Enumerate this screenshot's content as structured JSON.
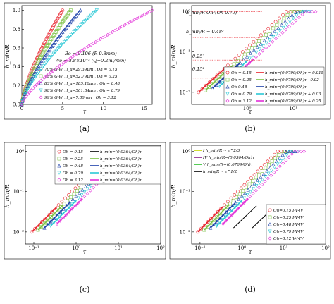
{
  "chart_data": [
    {
      "panel": "a",
      "type": "scatter",
      "caption": "(a)",
      "xlabel": "τ",
      "ylabel": "h_min/R",
      "xlim": [
        0,
        16
      ],
      "ylim": [
        0,
        1.05
      ],
      "x_ticks": [
        "0",
        "5",
        "10",
        "15"
      ],
      "y_ticks": [
        "0.0",
        "0.2",
        "0.4",
        "0.6",
        "0.8",
        "1.0"
      ],
      "y_tick_values": [
        0,
        0.2,
        0.4,
        0.6,
        0.8,
        1.0
      ],
      "params": [
        "Bo = 0.106 (R 0.8mm)",
        "We = 3.8×10⁻³ (Q=0.2ml/min)"
      ],
      "series": [
        {
          "name": "70% G-W , l_μ=29.39μm , Oh = 0.15",
          "marker": "circle",
          "color": "#e8202a",
          "tau_end": 5.0
        },
        {
          "name": "75% G-W , l_μ=52.79μm , Oh = 0.25",
          "marker": "square",
          "color": "#7ac143",
          "tau_end": 6.0
        },
        {
          "name": "83% G-W , l_μ=185.10μm , Oh = 0.48",
          "marker": "triangle-up",
          "color": "#1a3fa8",
          "tau_end": 7.2
        },
        {
          "name": "90% G-W , l_μ=501.84μm , Oh = 0.79",
          "marker": "triangle-down",
          "color": "#2bc8d6",
          "tau_end": 9.2
        },
        {
          "name": "99% G-W , l_μ=7.80mm , Oh = 3.12",
          "marker": "diamond",
          "color": "#e22fd8",
          "tau_end": 16.0
        }
      ]
    },
    {
      "panel": "b",
      "type": "scatter",
      "caption": "(b)",
      "xlabel": "τ",
      "ylabel": "h_min/R",
      "scale": "log-log",
      "xlim_exp": [
        -1.2,
        1.7
      ],
      "ylim_exp": [
        -2.3,
        0.15
      ],
      "x_ticks": [
        "10⁰",
        "10¹"
      ],
      "y_ticks": [
        "10⁻²",
        "10⁻¹",
        "10⁰"
      ],
      "annotations": [
        "h_min/R  Oh²(Oh  0.79)",
        "h_min/R = 0.48²",
        "0.25²",
        "0.15²"
      ],
      "series": [
        {
          "name": "Oh = 0.15",
          "marker": "circle",
          "color": "#e8202a"
        },
        {
          "name": "Oh = 0.25",
          "marker": "square",
          "color": "#7ac143"
        },
        {
          "name": "Oh  0.48",
          "marker": "triangle-up",
          "color": "#1a3fa8"
        },
        {
          "name": "Oh = 0.79",
          "marker": "triangle-down",
          "color": "#2bc8d6"
        },
        {
          "name": "Oh = 3.12",
          "marker": "diamond",
          "color": "#e22fd8"
        }
      ],
      "fits": [
        {
          "label": "h_min=(0.0709/Oh)τ = 0.015",
          "color": "#e8202a"
        },
        {
          "label": "h_min=(0.0709/Oh)τ - 0.02",
          "color": "#7ac143"
        },
        {
          "label": "h_min=(0.0709/Oh)τ",
          "color": "#1a3fa8"
        },
        {
          "label": "h_min=(0.0709/Oh)τ + 0.03",
          "color": "#2bc8d6"
        },
        {
          "label": "h_min=(0.0709/Oh)τ + 0.25",
          "color": "#e22fd8"
        }
      ]
    },
    {
      "panel": "c",
      "type": "scatter",
      "caption": "(c)",
      "xlabel": "τ",
      "ylabel": "h_min/R",
      "scale": "log-log",
      "xlim_exp": [
        -1.2,
        2.0
      ],
      "ylim_exp": [
        -2.3,
        0.15
      ],
      "x_ticks": [
        "10⁻¹",
        "10⁰",
        "10¹",
        "10²"
      ],
      "y_ticks": [
        "10⁻²",
        "10⁻¹",
        "10⁰"
      ],
      "series": [
        {
          "name": "Oh = 0.15",
          "marker": "circle",
          "color": "#e8202a"
        },
        {
          "name": "Oh = 0.25",
          "marker": "square",
          "color": "#7ac143"
        },
        {
          "name": "Oh = 0.48",
          "marker": "triangle-up",
          "color": "#1a3fa8"
        },
        {
          "name": "Oh = 0.79",
          "marker": "triangle-down",
          "color": "#2bc8d6"
        },
        {
          "name": "Oh = 3.12",
          "marker": "diamond",
          "color": "#e22fd8"
        }
      ],
      "fits": [
        {
          "label": "h_min=(0.0364/Oh)τ",
          "color": "#000000"
        },
        {
          "label": "h_min=(0.0364/Oh)τ",
          "color": "#7ac143"
        },
        {
          "label": "h_min=(0.0364/Oh)τ",
          "color": "#1a3fa8"
        },
        {
          "label": "h_min=(0.0364/Oh)τ",
          "color": "#2bc8d6"
        },
        {
          "label": "h_min=(0.0364/Oh)τ",
          "color": "#e22fd8"
        }
      ]
    },
    {
      "panel": "d",
      "type": "scatter",
      "caption": "(d)",
      "xlabel": "τ",
      "ylabel": "h_min/R",
      "scale": "log-log",
      "xlim_exp": [
        -1.2,
        2.0
      ],
      "ylim_exp": [
        -2.3,
        0.15
      ],
      "x_ticks": [
        "10⁻¹",
        "10⁰",
        "10¹",
        "10²"
      ],
      "y_ticks": [
        "10⁻²",
        "10⁻¹",
        "10⁰"
      ],
      "regimes": [
        {
          "label": "I  h_min/R ~ τ^2/3",
          "color": "#c8d400"
        },
        {
          "label": "IV h_min/R=(0.0364/Oh)τ",
          "color": "#8a1e8a"
        },
        {
          "label": "V h_min/R=(0.0709/Oh)τ",
          "color": "#2dbf2d"
        },
        {
          "label": "h_min/R ~ τ^1/2",
          "color": "#000000"
        }
      ],
      "series": [
        {
          "name": "Oh=0.15 I-V-IV",
          "marker": "circle",
          "color": "#e8202a"
        },
        {
          "name": "Oh=0.25 I-V-IV",
          "marker": "square",
          "color": "#7ac143"
        },
        {
          "name": "Oh=0.48 I-V-IV",
          "marker": "triangle-up",
          "color": "#1a3fa8"
        },
        {
          "name": "Oh=0.79 I-V-IV",
          "marker": "triangle-down",
          "color": "#2bc8d6"
        },
        {
          "name": "Oh=3.12 V-I-IV",
          "marker": "diamond",
          "color": "#e22fd8"
        }
      ]
    }
  ]
}
